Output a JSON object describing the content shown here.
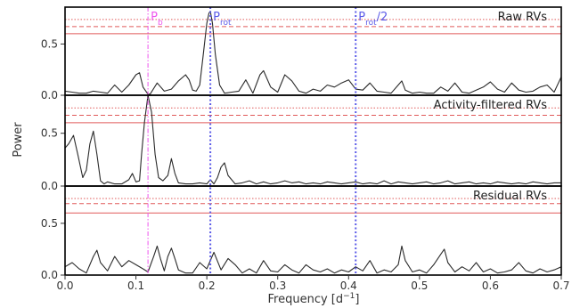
{
  "chart_data": {
    "type": "line",
    "ylabel": "Power",
    "xlabel": "Frequency [d",
    "xlabel_unit": "−1",
    "xlabel_close": "]",
    "xlim": [
      0.0,
      0.7
    ],
    "xticks": [
      0.0,
      0.1,
      0.2,
      0.3,
      0.4,
      0.5,
      0.6,
      0.7
    ],
    "xtick_labels": [
      "0.0",
      "0.1",
      "0.2",
      "0.3",
      "0.4",
      "0.5",
      "0.6",
      "0.7"
    ],
    "ylim": [
      0.0,
      0.86
    ],
    "yticks": [
      0.0,
      0.5
    ],
    "ytick_labels": [
      "0.0",
      "0.5"
    ],
    "colors": {
      "curve": "#2b2b2b",
      "fap": "#e05a5a",
      "pb": "#ee55ee",
      "prot": "#5b5be8"
    },
    "vertical_lines": [
      {
        "label": "P",
        "sub": "b",
        "x": 0.117,
        "color": "#ee55ee",
        "style": "dashdot"
      },
      {
        "label": "P",
        "sub": "rot",
        "x": 0.205,
        "color": "#5b5be8",
        "style": "dotted"
      },
      {
        "label": "P",
        "sub": "rot",
        "suffix": "/2",
        "x": 0.41,
        "color": "#5b5be8",
        "style": "dotted"
      }
    ],
    "panels": [
      {
        "title": "Raw RVs",
        "fap_levels": [
          {
            "y": 0.74,
            "style": "dotted"
          },
          {
            "y": 0.67,
            "style": "dashed"
          },
          {
            "y": 0.6,
            "style": "solid"
          }
        ],
        "series": [
          {
            "x": [
              0.0,
              0.01,
              0.02,
              0.03,
              0.04,
              0.05,
              0.06,
              0.07,
              0.08,
              0.09,
              0.1,
              0.105,
              0.11,
              0.117,
              0.12,
              0.13,
              0.14,
              0.15,
              0.16,
              0.17,
              0.175,
              0.18,
              0.185,
              0.19,
              0.195,
              0.2,
              0.203,
              0.205,
              0.208,
              0.212,
              0.218,
              0.225,
              0.235,
              0.245,
              0.255,
              0.265,
              0.275,
              0.28,
              0.29,
              0.3,
              0.31,
              0.32,
              0.33,
              0.34,
              0.35,
              0.36,
              0.37,
              0.38,
              0.39,
              0.4,
              0.41,
              0.42,
              0.43,
              0.44,
              0.45,
              0.46,
              0.47,
              0.475,
              0.48,
              0.49,
              0.5,
              0.51,
              0.52,
              0.53,
              0.54,
              0.55,
              0.56,
              0.57,
              0.58,
              0.59,
              0.6,
              0.61,
              0.62,
              0.63,
              0.64,
              0.65,
              0.66,
              0.67,
              0.68,
              0.69,
              0.7
            ],
            "y": [
              0.04,
              0.03,
              0.02,
              0.02,
              0.04,
              0.03,
              0.02,
              0.1,
              0.03,
              0.1,
              0.2,
              0.22,
              0.08,
              0.01,
              0.01,
              0.12,
              0.04,
              0.06,
              0.14,
              0.2,
              0.15,
              0.05,
              0.04,
              0.1,
              0.4,
              0.7,
              0.8,
              0.82,
              0.7,
              0.4,
              0.1,
              0.02,
              0.03,
              0.04,
              0.15,
              0.02,
              0.2,
              0.24,
              0.08,
              0.03,
              0.2,
              0.14,
              0.04,
              0.02,
              0.06,
              0.04,
              0.1,
              0.08,
              0.12,
              0.15,
              0.06,
              0.05,
              0.12,
              0.04,
              0.03,
              0.02,
              0.1,
              0.14,
              0.05,
              0.02,
              0.03,
              0.02,
              0.02,
              0.08,
              0.04,
              0.12,
              0.03,
              0.02,
              0.05,
              0.08,
              0.13,
              0.06,
              0.03,
              0.12,
              0.05,
              0.03,
              0.04,
              0.08,
              0.1,
              0.03,
              0.18
            ]
          }
        ]
      },
      {
        "title": "Activity-filtered RVs",
        "fap_levels": [
          {
            "y": 0.74,
            "style": "dotted"
          },
          {
            "y": 0.67,
            "style": "dashed"
          },
          {
            "y": 0.6,
            "style": "solid"
          }
        ],
        "series": [
          {
            "x": [
              0.0,
              0.005,
              0.012,
              0.018,
              0.025,
              0.03,
              0.035,
              0.04,
              0.045,
              0.05,
              0.055,
              0.06,
              0.07,
              0.08,
              0.09,
              0.095,
              0.1,
              0.105,
              0.108,
              0.112,
              0.117,
              0.122,
              0.127,
              0.132,
              0.138,
              0.145,
              0.15,
              0.155,
              0.16,
              0.17,
              0.18,
              0.19,
              0.2,
              0.205,
              0.21,
              0.215,
              0.22,
              0.225,
              0.23,
              0.24,
              0.25,
              0.26,
              0.27,
              0.28,
              0.29,
              0.3,
              0.31,
              0.32,
              0.33,
              0.34,
              0.35,
              0.36,
              0.37,
              0.38,
              0.39,
              0.4,
              0.41,
              0.42,
              0.43,
              0.44,
              0.45,
              0.46,
              0.47,
              0.48,
              0.49,
              0.5,
              0.51,
              0.52,
              0.53,
              0.54,
              0.55,
              0.56,
              0.57,
              0.58,
              0.59,
              0.6,
              0.61,
              0.62,
              0.63,
              0.64,
              0.65,
              0.66,
              0.67,
              0.68,
              0.69,
              0.7
            ],
            "y": [
              0.36,
              0.4,
              0.48,
              0.3,
              0.08,
              0.15,
              0.4,
              0.52,
              0.3,
              0.05,
              0.02,
              0.04,
              0.02,
              0.02,
              0.06,
              0.12,
              0.04,
              0.05,
              0.3,
              0.6,
              0.86,
              0.7,
              0.3,
              0.08,
              0.05,
              0.1,
              0.26,
              0.12,
              0.03,
              0.02,
              0.02,
              0.03,
              0.02,
              0.06,
              0.02,
              0.08,
              0.18,
              0.22,
              0.1,
              0.02,
              0.03,
              0.05,
              0.02,
              0.04,
              0.02,
              0.03,
              0.05,
              0.03,
              0.04,
              0.02,
              0.03,
              0.02,
              0.04,
              0.03,
              0.02,
              0.03,
              0.04,
              0.02,
              0.03,
              0.02,
              0.05,
              0.02,
              0.04,
              0.03,
              0.02,
              0.03,
              0.04,
              0.02,
              0.03,
              0.05,
              0.02,
              0.03,
              0.04,
              0.02,
              0.03,
              0.02,
              0.04,
              0.03,
              0.02,
              0.03,
              0.02,
              0.04,
              0.03,
              0.02,
              0.03,
              0.03
            ]
          }
        ]
      },
      {
        "title": "Residual RVs",
        "fap_levels": [
          {
            "y": 0.74,
            "style": "dotted"
          },
          {
            "y": 0.69,
            "style": "dashed"
          },
          {
            "y": 0.6,
            "style": "solid"
          }
        ],
        "series": [
          {
            "x": [
              0.0,
              0.01,
              0.02,
              0.03,
              0.04,
              0.045,
              0.05,
              0.06,
              0.07,
              0.08,
              0.09,
              0.1,
              0.11,
              0.117,
              0.125,
              0.13,
              0.135,
              0.14,
              0.145,
              0.15,
              0.155,
              0.16,
              0.17,
              0.18,
              0.19,
              0.2,
              0.21,
              0.22,
              0.23,
              0.24,
              0.25,
              0.26,
              0.27,
              0.28,
              0.29,
              0.3,
              0.31,
              0.32,
              0.33,
              0.34,
              0.35,
              0.36,
              0.37,
              0.38,
              0.39,
              0.4,
              0.41,
              0.42,
              0.43,
              0.44,
              0.45,
              0.46,
              0.47,
              0.475,
              0.48,
              0.49,
              0.5,
              0.51,
              0.52,
              0.53,
              0.535,
              0.54,
              0.55,
              0.56,
              0.57,
              0.58,
              0.59,
              0.6,
              0.61,
              0.62,
              0.63,
              0.64,
              0.65,
              0.66,
              0.67,
              0.68,
              0.69,
              0.7
            ],
            "y": [
              0.08,
              0.12,
              0.06,
              0.02,
              0.18,
              0.24,
              0.12,
              0.04,
              0.18,
              0.08,
              0.14,
              0.1,
              0.06,
              0.03,
              0.18,
              0.28,
              0.15,
              0.04,
              0.18,
              0.26,
              0.16,
              0.05,
              0.02,
              0.02,
              0.12,
              0.06,
              0.22,
              0.05,
              0.16,
              0.1,
              0.02,
              0.06,
              0.02,
              0.14,
              0.04,
              0.03,
              0.1,
              0.05,
              0.02,
              0.1,
              0.05,
              0.03,
              0.06,
              0.02,
              0.05,
              0.03,
              0.08,
              0.04,
              0.14,
              0.02,
              0.05,
              0.03,
              0.1,
              0.28,
              0.14,
              0.03,
              0.05,
              0.02,
              0.1,
              0.2,
              0.25,
              0.12,
              0.03,
              0.08,
              0.04,
              0.12,
              0.03,
              0.06,
              0.02,
              0.03,
              0.05,
              0.12,
              0.04,
              0.02,
              0.06,
              0.03,
              0.05,
              0.08
            ]
          }
        ]
      }
    ]
  }
}
